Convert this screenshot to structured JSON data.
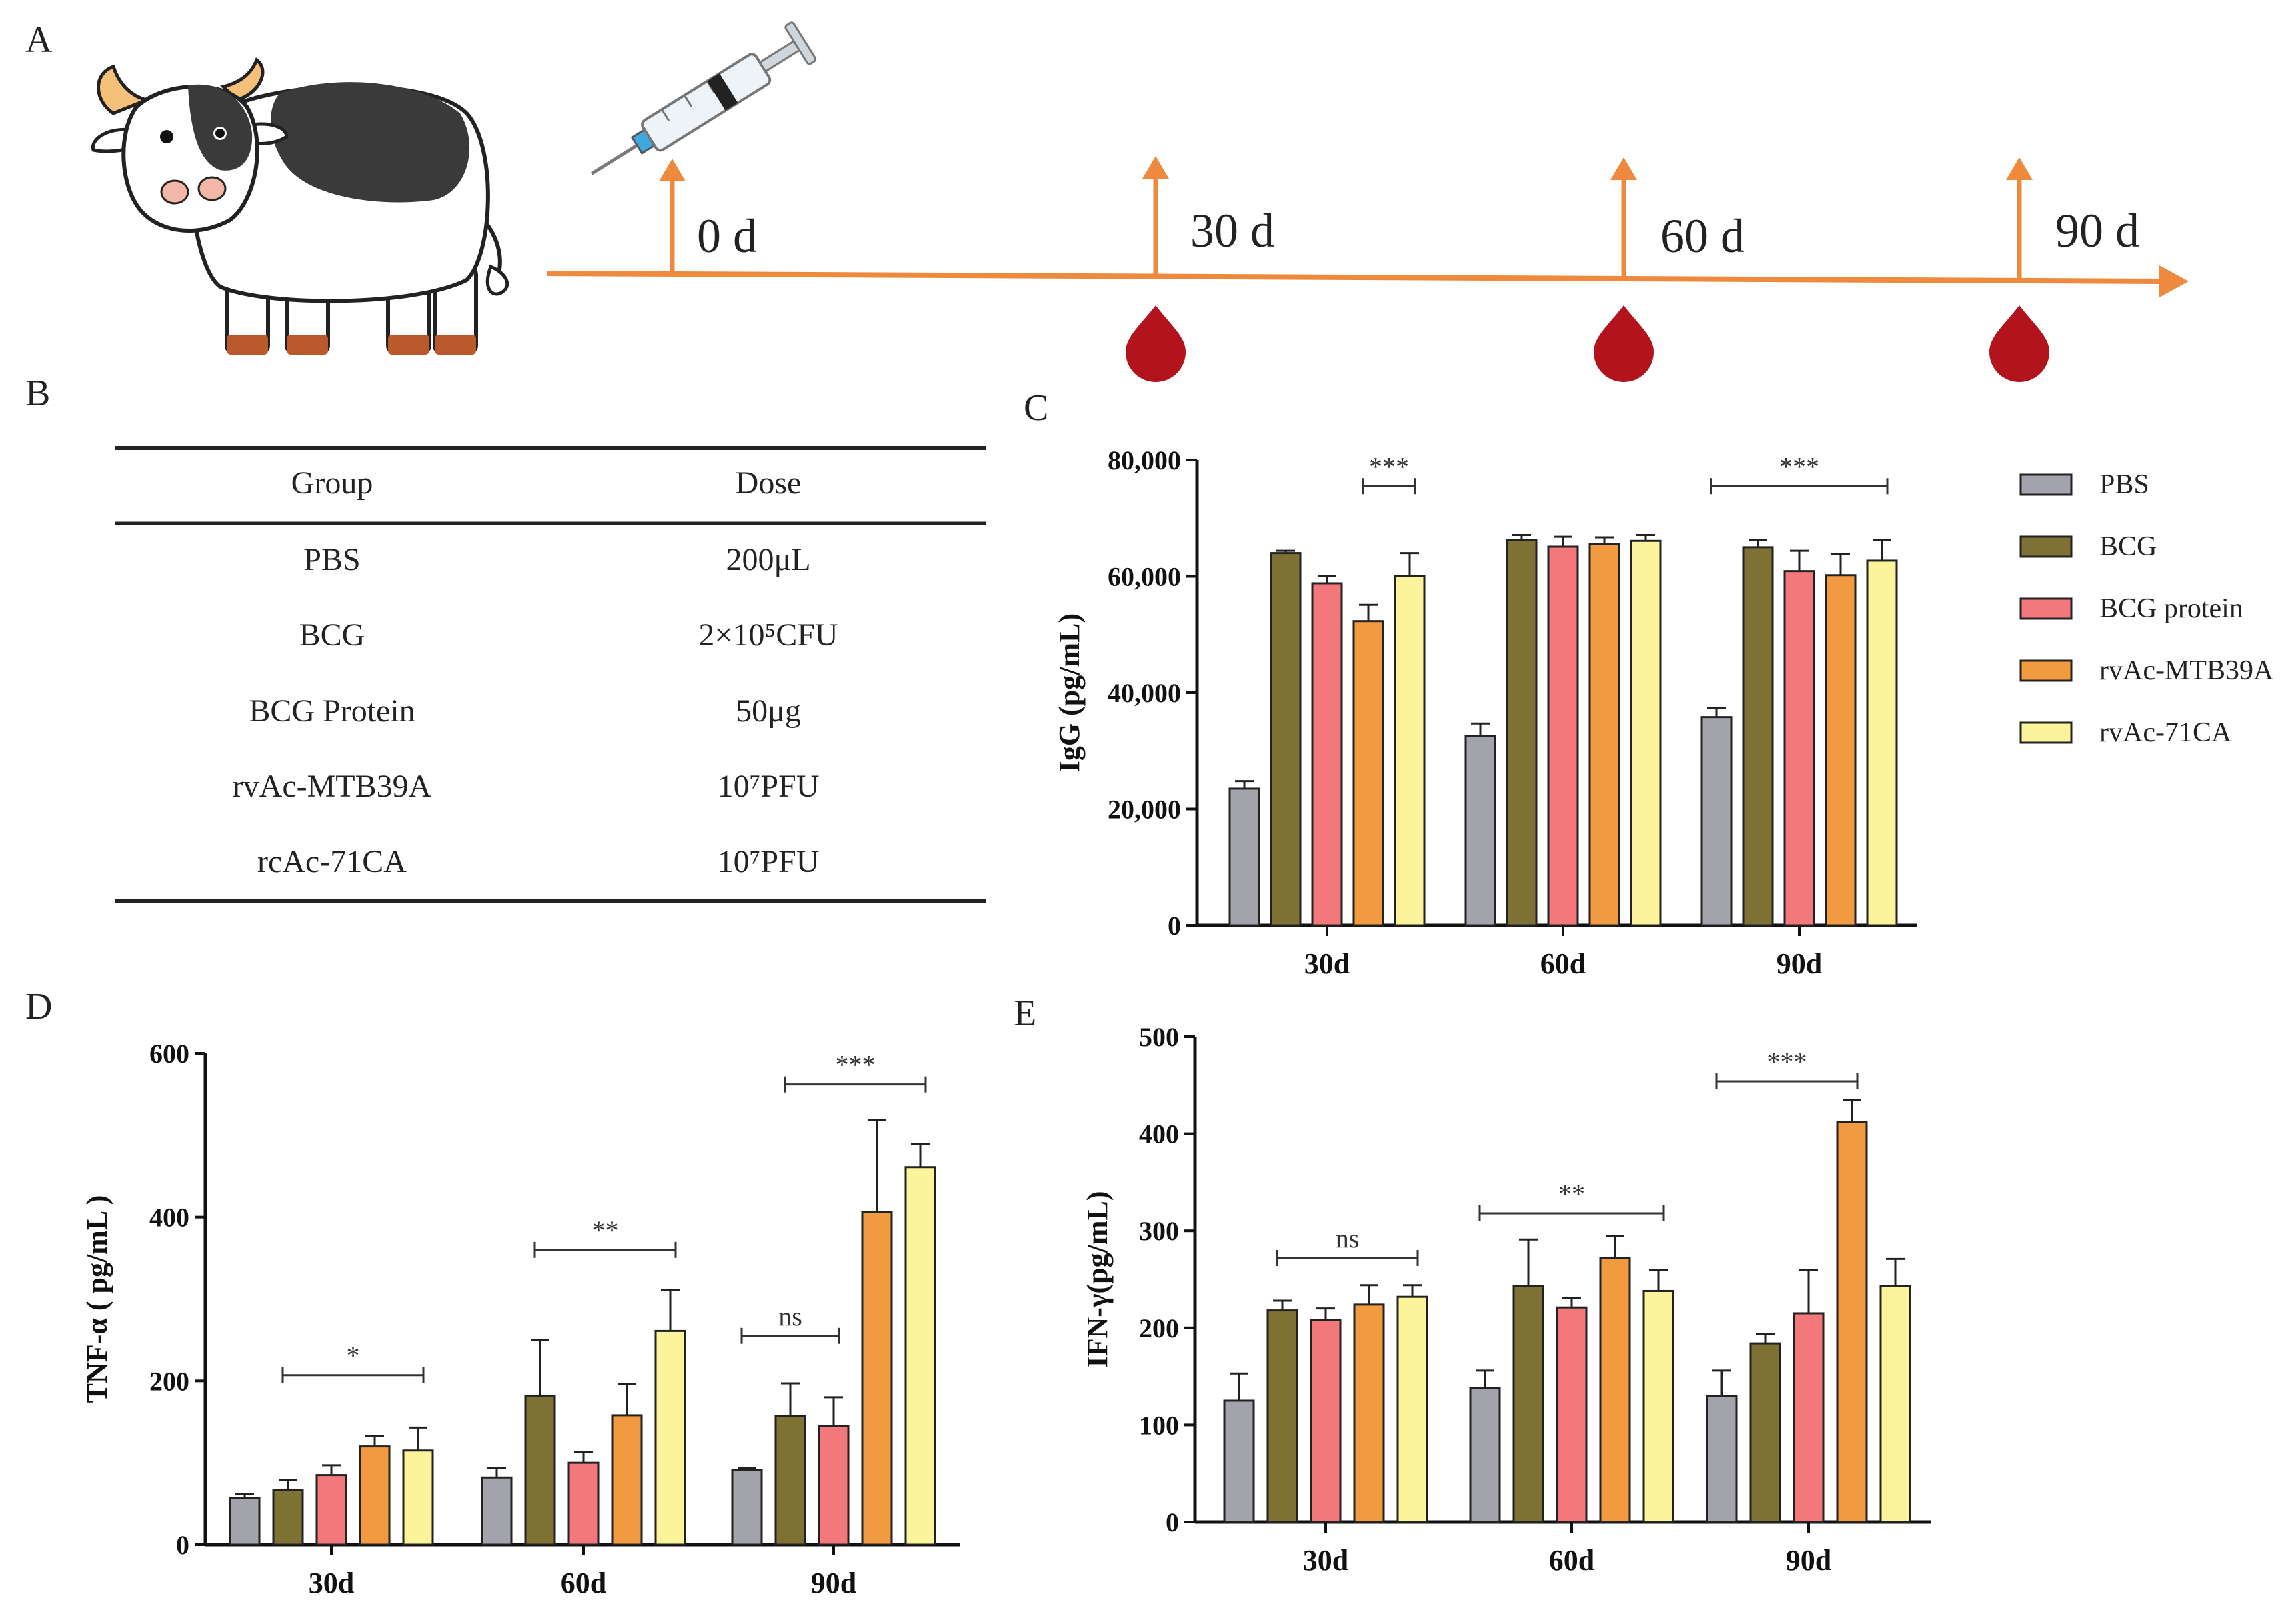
{
  "panels": {
    "A": "A",
    "B": "B",
    "C": "C",
    "D": "D",
    "E": "E"
  },
  "timeline": {
    "days": [
      "0 d",
      "30 d",
      "60 d",
      "90 d"
    ],
    "icons": [
      "cow-illustration",
      "syringe-icon",
      "blood-drop-icon"
    ]
  },
  "table": {
    "headers": [
      "Group",
      "Dose"
    ],
    "rows": [
      {
        "group": "PBS",
        "dose": "200μL"
      },
      {
        "group": "BCG",
        "dose": "2×10⁵CFU"
      },
      {
        "group": "BCG Protein",
        "dose": "50μg"
      },
      {
        "group": "rvAc-MTB39A",
        "dose": "10⁷PFU"
      },
      {
        "group": "rcAc-71CA",
        "dose": "10⁷PFU"
      }
    ]
  },
  "legend": [
    "PBS",
    "BCG",
    "BCG protein",
    "rvAc-MTB39A",
    "rvAc-71CA"
  ],
  "colors": {
    "PBS": "#a3a3ab",
    "BCG": "#7d7133",
    "BCG protein": "#f2787c",
    "rvAc-MTB39A": "#f29a3f",
    "rvAc-71CA": "#fbf49a",
    "timeline": "#ee8a3e",
    "blood": "#b2131d"
  },
  "chart_data": [
    {
      "panel": "C",
      "type": "bar",
      "title": "",
      "xlabel": "",
      "ylabel": "IgG (pg/mL)",
      "categories": [
        "30d",
        "60d",
        "90d"
      ],
      "ylim": [
        0,
        80000
      ],
      "yticks": [
        0,
        20000,
        40000,
        60000,
        80000
      ],
      "ytick_labels": [
        "0",
        "20,000",
        "40,000",
        "60,000",
        "80,000"
      ],
      "series": [
        {
          "name": "PBS",
          "values": [
            23500,
            32500,
            35800
          ],
          "errors": [
            1300,
            2200,
            1500
          ]
        },
        {
          "name": "BCG",
          "values": [
            64000,
            66300,
            65000
          ],
          "errors": [
            400,
            800,
            1200
          ]
        },
        {
          "name": "BCG protein",
          "values": [
            58800,
            65100,
            60900
          ],
          "errors": [
            1200,
            1700,
            3500
          ]
        },
        {
          "name": "rvAc-MTB39A",
          "values": [
            52300,
            65600,
            60200
          ],
          "errors": [
            2800,
            1100,
            3600
          ]
        },
        {
          "name": "rvAc-71CA",
          "values": [
            60100,
            66100,
            62700
          ],
          "errors": [
            3900,
            1000,
            3500
          ]
        }
      ],
      "annotations": [
        {
          "text": "***",
          "group": 0,
          "from_series": 3,
          "to_series": 4,
          "y": 75500
        },
        {
          "text": "***",
          "group": 2,
          "from_series": 0,
          "to_series": 4,
          "y": 75500
        }
      ]
    },
    {
      "panel": "D",
      "type": "bar",
      "title": "",
      "xlabel": "",
      "ylabel": "TNF-α ( pg/mL )",
      "categories": [
        "30d",
        "60d",
        "90d"
      ],
      "ylim": [
        0,
        600
      ],
      "yticks": [
        0,
        200,
        400,
        600
      ],
      "ytick_labels": [
        "0",
        "200",
        "400",
        "600"
      ],
      "series": [
        {
          "name": "PBS",
          "values": [
            57,
            82,
            91
          ],
          "errors": [
            5,
            12,
            3
          ]
        },
        {
          "name": "BCG",
          "values": [
            67,
            182,
            157
          ],
          "errors": [
            12,
            68,
            40
          ]
        },
        {
          "name": "BCG protein",
          "values": [
            85,
            100,
            145
          ],
          "errors": [
            12,
            13,
            35
          ]
        },
        {
          "name": "rvAc-MTB39A",
          "values": [
            120,
            158,
            406
          ],
          "errors": [
            13,
            38,
            113
          ]
        },
        {
          "name": "rvAc-71CA",
          "values": [
            115,
            261,
            461
          ],
          "errors": [
            28,
            50,
            28
          ]
        }
      ],
      "annotations": [
        {
          "text": "*",
          "group": 0,
          "from_series": 1,
          "to_series": 4,
          "y": 207
        },
        {
          "text": "**",
          "group": 1,
          "from_series": 1,
          "to_series": 4,
          "y": 360
        },
        {
          "text": "ns",
          "group": 2,
          "from_series": 0,
          "to_series": 2,
          "y": 255
        },
        {
          "text": "***",
          "group": 2,
          "from_series": 1,
          "to_series": 4,
          "y": 562
        }
      ]
    },
    {
      "panel": "E",
      "type": "bar",
      "title": "",
      "xlabel": "",
      "ylabel": "IFN-γ(pg/mL)",
      "categories": [
        "30d",
        "60d",
        "90d"
      ],
      "ylim": [
        0,
        500
      ],
      "yticks": [
        0,
        100,
        200,
        300,
        400,
        500
      ],
      "ytick_labels": [
        "0",
        "100",
        "200",
        "300",
        "400",
        "500"
      ],
      "series": [
        {
          "name": "PBS",
          "values": [
            125,
            138,
            130
          ],
          "errors": [
            28,
            18,
            26
          ]
        },
        {
          "name": "BCG",
          "values": [
            218,
            243,
            184
          ],
          "errors": [
            10,
            48,
            10
          ]
        },
        {
          "name": "BCG protein",
          "values": [
            208,
            221,
            215
          ],
          "errors": [
            12,
            10,
            45
          ]
        },
        {
          "name": "rvAc-MTB39A",
          "values": [
            224,
            272,
            412
          ],
          "errors": [
            20,
            23,
            23
          ]
        },
        {
          "name": "rvAc-71CA",
          "values": [
            232,
            238,
            243
          ],
          "errors": [
            12,
            22,
            28
          ]
        }
      ],
      "annotations": [
        {
          "text": "ns",
          "group": 0,
          "from_series": 1,
          "to_series": 4,
          "y": 272
        },
        {
          "text": "**",
          "group": 1,
          "from_series": 0,
          "to_series": 4,
          "y": 318
        },
        {
          "text": "***",
          "group": 2,
          "from_series": 0,
          "to_series": 3,
          "y": 454
        }
      ]
    }
  ]
}
